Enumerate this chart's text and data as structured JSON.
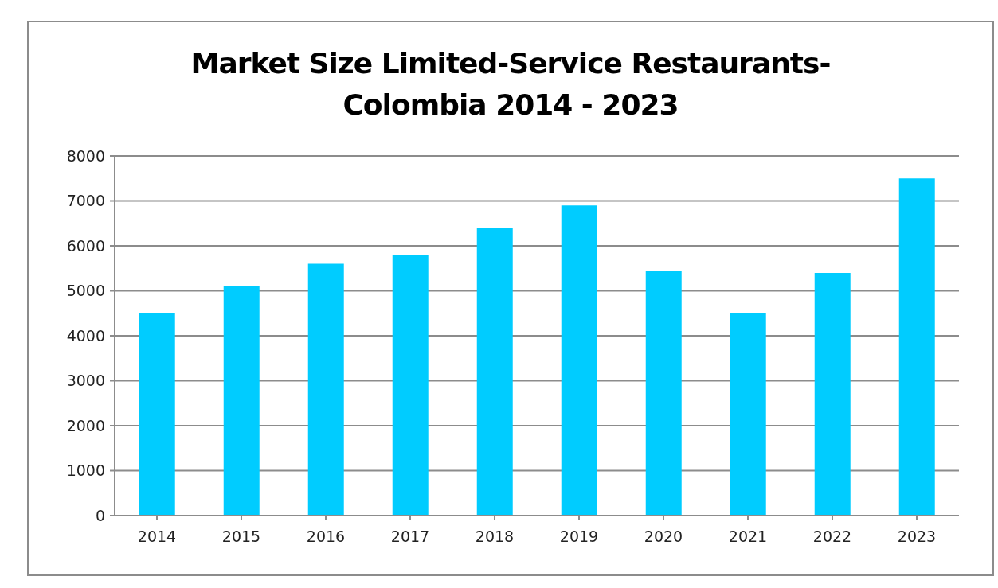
{
  "chart_data": {
    "type": "bar",
    "title": "Market Size Limited-Service Restaurants-\nColombia 2014 - 2023",
    "categories": [
      "2014",
      "2015",
      "2016",
      "2017",
      "2018",
      "2019",
      "2020",
      "2021",
      "2022",
      "2023"
    ],
    "values": [
      4500,
      5100,
      5600,
      5800,
      6400,
      6900,
      5450,
      4500,
      5400,
      7500
    ],
    "color": "#00ccff",
    "ylim": [
      0,
      8000
    ],
    "yticks": [
      0,
      1000,
      2000,
      3000,
      4000,
      5000,
      6000,
      7000,
      8000
    ],
    "grid": "y"
  }
}
